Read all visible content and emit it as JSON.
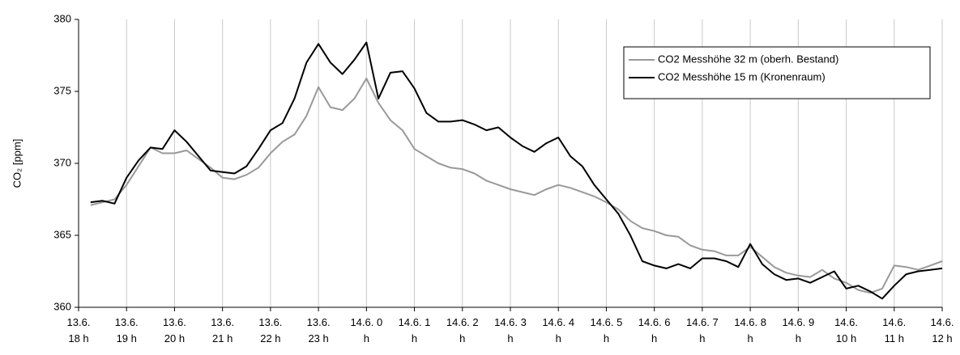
{
  "chart_data": {
    "type": "line",
    "ylabel": "CO₂ [ppm]",
    "ylim": [
      360,
      380
    ],
    "yticks": [
      360,
      365,
      370,
      375,
      380
    ],
    "xlim": [
      18,
      36
    ],
    "xticks": [
      {
        "value": 18,
        "label": "13.6. 18 h"
      },
      {
        "value": 19,
        "label": "13.6. 19 h"
      },
      {
        "value": 20,
        "label": "13.6. 20 h"
      },
      {
        "value": 21,
        "label": "13.6. 21 h"
      },
      {
        "value": 22,
        "label": "13.6. 22 h"
      },
      {
        "value": 23,
        "label": "13.6. 23 h"
      },
      {
        "value": 24,
        "label": "14.6. 0 h"
      },
      {
        "value": 25,
        "label": "14.6. 1 h"
      },
      {
        "value": 26,
        "label": "14.6. 2 h"
      },
      {
        "value": 27,
        "label": "14.6. 3 h"
      },
      {
        "value": 28,
        "label": "14.6. 4 h"
      },
      {
        "value": 29,
        "label": "14.6. 5 h"
      },
      {
        "value": 30,
        "label": "14.6. 6 h"
      },
      {
        "value": 31,
        "label": "14.6. 7 h"
      },
      {
        "value": 32,
        "label": "14.6. 8 h"
      },
      {
        "value": 33,
        "label": "14.6. 9 h"
      },
      {
        "value": 34,
        "label": "14.6. 10 h"
      },
      {
        "value": 35,
        "label": "14.6. 11 h"
      },
      {
        "value": 36,
        "label": "14.6. 12 h"
      }
    ],
    "grid": "x",
    "legend": "upper right",
    "x": [
      18.25,
      18.5,
      18.75,
      19,
      19.25,
      19.5,
      19.75,
      20,
      20.25,
      20.5,
      20.75,
      21,
      21.25,
      21.5,
      21.75,
      22,
      22.25,
      22.5,
      22.75,
      23,
      23.25,
      23.5,
      23.75,
      24,
      24.25,
      24.5,
      24.75,
      25,
      25.25,
      25.5,
      25.75,
      26,
      26.25,
      26.5,
      26.75,
      27,
      27.25,
      27.5,
      27.75,
      28,
      28.25,
      28.5,
      28.75,
      29,
      29.25,
      29.5,
      29.75,
      30,
      30.25,
      30.5,
      30.75,
      31,
      31.25,
      31.5,
      31.75,
      32,
      32.25,
      32.5,
      32.75,
      33,
      33.25,
      33.5,
      33.75,
      34,
      34.25,
      34.5,
      34.75,
      35,
      35.25,
      35.5,
      35.75,
      36
    ],
    "series": [
      {
        "name": "CO2 Messhöhe 32 m (oberh. Bestand)",
        "color": "#999999",
        "values": [
          367.1,
          367.3,
          367.5,
          368.5,
          369.8,
          371.1,
          370.7,
          370.7,
          370.9,
          370.3,
          369.7,
          369.0,
          368.9,
          369.2,
          369.7,
          370.7,
          371.5,
          372.0,
          373.3,
          375.3,
          373.9,
          373.7,
          374.5,
          375.9,
          374.2,
          373.0,
          372.3,
          371.0,
          370.5,
          370.0,
          369.7,
          369.6,
          369.3,
          368.8,
          368.5,
          368.2,
          368.0,
          367.8,
          368.2,
          368.5,
          368.3,
          368.0,
          367.7,
          367.3,
          366.8,
          366.0,
          365.5,
          365.3,
          365.0,
          364.9,
          364.3,
          364.0,
          363.9,
          363.6,
          363.6,
          364.2,
          363.5,
          362.8,
          362.4,
          362.2,
          362.1,
          362.6,
          362.0,
          361.7,
          361.2,
          361.0,
          361.3,
          362.9,
          362.8,
          362.6,
          362.9,
          363.2
        ]
      },
      {
        "name": "CO2 Messhöhe 15 m (Kronenraum)",
        "color": "#000000",
        "values": [
          367.3,
          367.4,
          367.2,
          369.0,
          370.2,
          371.1,
          371.0,
          372.3,
          371.5,
          370.5,
          369.5,
          369.4,
          369.3,
          369.8,
          371.0,
          372.3,
          372.8,
          374.5,
          377.0,
          378.3,
          377.0,
          376.2,
          377.2,
          378.4,
          374.5,
          376.3,
          376.4,
          375.2,
          373.5,
          372.9,
          372.9,
          373.0,
          372.7,
          372.3,
          372.5,
          371.8,
          371.2,
          370.8,
          371.4,
          371.8,
          370.5,
          369.8,
          368.5,
          367.5,
          366.5,
          365.0,
          363.2,
          362.9,
          362.7,
          363.0,
          362.7,
          363.4,
          363.4,
          363.2,
          362.8,
          364.4,
          363.0,
          362.3,
          361.9,
          362.0,
          361.7,
          362.1,
          362.5,
          361.3,
          361.5,
          361.1,
          360.6,
          361.5,
          362.3,
          362.5,
          362.6,
          362.7
        ]
      }
    ]
  }
}
